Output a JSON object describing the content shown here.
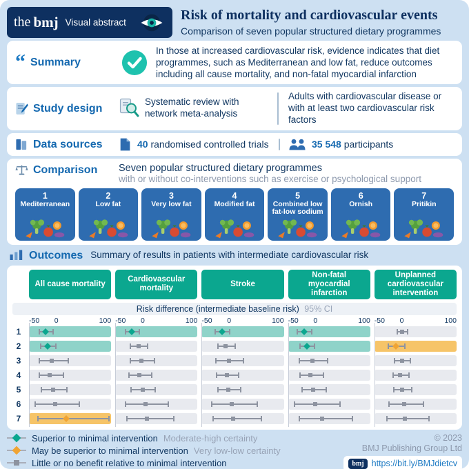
{
  "header": {
    "logo_the": "the",
    "logo_bmj": "bmj",
    "logo_sub": "Visual abstract",
    "title": "Risk of mortality and cardiovascular events",
    "subtitle": "Comparison of seven popular structured dietary programmes"
  },
  "summary": {
    "label": "Summary",
    "text": "In those at increased cardiovascular risk, evidence indicates that diet programmes, such as Mediterranean and low fat, reduce outcomes including all cause mortality, and non-fatal myocardial infarction"
  },
  "study_design": {
    "label": "Study design",
    "method": "Systematic review with network meta-analysis",
    "population": "Adults with cardiovascular disease or with at least two cardiovascular risk factors"
  },
  "data_sources": {
    "label": "Data sources",
    "trials_count": "40",
    "trials_label": "randomised controlled trials",
    "participants_count": "35 548",
    "participants_label": "participants"
  },
  "comparison": {
    "label": "Comparison",
    "line1": "Seven popular structured dietary programmes",
    "line2": "with or without co-interventions such as exercise or psychological support",
    "diets": [
      {
        "number": "1",
        "name": "Mediterranean"
      },
      {
        "number": "2",
        "name": "Low fat"
      },
      {
        "number": "3",
        "name": "Very low fat"
      },
      {
        "number": "4",
        "name": "Modified fat"
      },
      {
        "number": "5",
        "name": "Combined low fat-low sodium"
      },
      {
        "number": "6",
        "name": "Ornish"
      },
      {
        "number": "7",
        "name": "Pritikin"
      }
    ]
  },
  "outcomes": {
    "label": "Outcomes",
    "subtitle": "Summary of results in patients with intermediate cardiovascular risk",
    "axis_title": "Risk difference (intermediate baseline risk)",
    "axis_ci": "95% CI"
  },
  "chart_data": {
    "type": "forest",
    "title": "Summary of results in patients with intermediate cardiovascular risk",
    "xlabel": "Risk difference (intermediate baseline risk), 95% CI",
    "xlim": [
      -50,
      100
    ],
    "ticks": [
      -50,
      0,
      100
    ],
    "columns": [
      "All cause mortality",
      "Cardiovascular mortality",
      "Stroke",
      "Non-fatal myocardial infarction",
      "Unplanned cardiovascular intervention"
    ],
    "row_labels": [
      "1",
      "2",
      "3",
      "4",
      "5",
      "6",
      "7"
    ],
    "cells": [
      [
        {
          "est": -20,
          "lo": -33,
          "hi": -7,
          "marker": "teal",
          "band": "teal"
        },
        {
          "est": -16,
          "lo": -30,
          "hi": -2,
          "marker": "teal",
          "band": "teal"
        },
        {
          "est": -8,
          "lo": -33,
          "hi": 20,
          "marker": "gray",
          "band": null
        },
        {
          "est": -12,
          "lo": -32,
          "hi": 12,
          "marker": "gray",
          "band": null
        },
        {
          "est": -6,
          "lo": -28,
          "hi": 18,
          "marker": "gray",
          "band": null
        },
        {
          "est": -2,
          "lo": -40,
          "hi": 40,
          "marker": "gray",
          "band": null
        },
        {
          "est": 18,
          "lo": -35,
          "hi": 95,
          "marker": "orange",
          "band": "orange"
        }
      ],
      [
        {
          "est": -20,
          "lo": -33,
          "hi": -7,
          "marker": "teal",
          "band": "teal"
        },
        {
          "est": -8,
          "lo": -24,
          "hi": 8,
          "marker": "gray",
          "band": null
        },
        {
          "est": -2,
          "lo": -24,
          "hi": 20,
          "marker": "gray",
          "band": null
        },
        {
          "est": -6,
          "lo": -26,
          "hi": 15,
          "marker": "gray",
          "band": null
        },
        {
          "est": 0,
          "lo": -22,
          "hi": 22,
          "marker": "gray",
          "band": null
        },
        {
          "est": 5,
          "lo": -32,
          "hi": 45,
          "marker": "gray",
          "band": null
        },
        {
          "est": 8,
          "lo": -30,
          "hi": 55,
          "marker": "gray",
          "band": null
        }
      ],
      [
        {
          "est": -13,
          "lo": -26,
          "hi": 0,
          "marker": "teal",
          "band": "teal"
        },
        {
          "est": -6,
          "lo": -22,
          "hi": 10,
          "marker": "gray",
          "band": null
        },
        {
          "est": 0,
          "lo": -25,
          "hi": 25,
          "marker": "gray",
          "band": null
        },
        {
          "est": -4,
          "lo": -24,
          "hi": 16,
          "marker": "gray",
          "band": null
        },
        {
          "est": -1,
          "lo": -22,
          "hi": 20,
          "marker": "gray",
          "band": null
        },
        {
          "est": 5,
          "lo": -33,
          "hi": 50,
          "marker": "gray",
          "band": null
        },
        {
          "est": 8,
          "lo": -30,
          "hi": 58,
          "marker": "gray",
          "band": null
        }
      ],
      [
        {
          "est": -21,
          "lo": -34,
          "hi": -8,
          "marker": "teal",
          "band": "teal"
        },
        {
          "est": -16,
          "lo": -29,
          "hi": -3,
          "marker": "teal",
          "band": "teal"
        },
        {
          "est": -6,
          "lo": -31,
          "hi": 21,
          "marker": "gray",
          "band": null
        },
        {
          "est": -9,
          "lo": -29,
          "hi": 13,
          "marker": "gray",
          "band": null
        },
        {
          "est": -4,
          "lo": -26,
          "hi": 18,
          "marker": "gray",
          "band": null
        },
        {
          "est": -1,
          "lo": -39,
          "hi": 44,
          "marker": "gray",
          "band": null
        },
        {
          "est": 12,
          "lo": -31,
          "hi": 66,
          "marker": "gray",
          "band": null
        }
      ],
      [
        {
          "est": 0,
          "lo": -10,
          "hi": 10,
          "marker": "gray",
          "band": null
        },
        {
          "est": -11,
          "lo": -26,
          "hi": 5,
          "marker": "orange",
          "band": "orange"
        },
        {
          "est": 0,
          "lo": -14,
          "hi": 14,
          "marker": "gray",
          "band": null
        },
        {
          "est": -3,
          "lo": -17,
          "hi": 12,
          "marker": "gray",
          "band": null
        },
        {
          "est": 0,
          "lo": -16,
          "hi": 17,
          "marker": "gray",
          "band": null
        },
        {
          "est": 4,
          "lo": -25,
          "hi": 38,
          "marker": "gray",
          "band": null
        },
        {
          "est": 6,
          "lo": -28,
          "hi": 48,
          "marker": "gray",
          "band": null
        }
      ]
    ]
  },
  "legend": {
    "items": [
      {
        "marker": "teal-diamond",
        "label": "Superior to minimal intervention",
        "certainty": "Moderate-high certainty"
      },
      {
        "marker": "orange-diamond",
        "label": "May be superior to minimal intervention",
        "certainty": "Very low-low certainty"
      },
      {
        "marker": "gray-square",
        "label": "Little or no benefit relative to minimal intervention",
        "certainty": ""
      }
    ]
  },
  "footer": {
    "copyright": "© 2023",
    "org": "BMJ Publishing Group Ltd",
    "logo": "bmj",
    "link": "https://bit.ly/BMJdietcv"
  },
  "colors": {
    "navy": "#0e3060",
    "blue": "#1569b0",
    "teal": "#0ba78f",
    "teal_band": "#8fd3c9",
    "orange": "#f0a433",
    "orange_band": "#f6c468",
    "gray_marker": "#8d93a0",
    "card_blue": "#2e6cb0",
    "background": "#cde0f2"
  }
}
